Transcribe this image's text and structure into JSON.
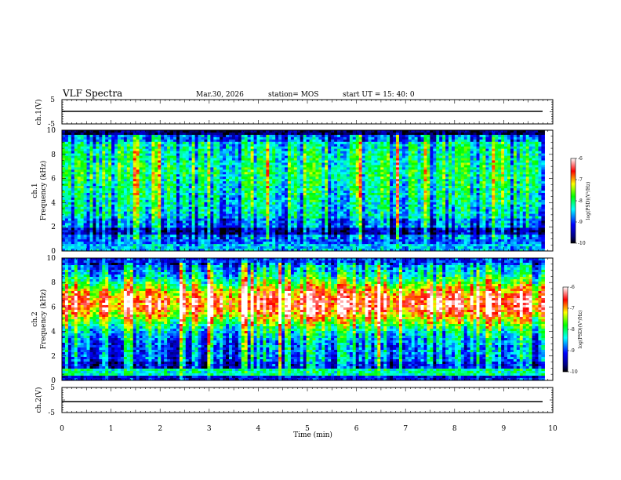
{
  "header": {
    "title": "VLF Spectra",
    "date": "Mar.30, 2026",
    "station": "station= MOS",
    "start": "start  UT  =   15: 40: 0"
  },
  "chart_data": [
    {
      "type": "line",
      "name": "ch1_waveform",
      "ylabel": "ch.1(V)",
      "ylim": [
        -5,
        5
      ],
      "ytick_labels": [
        "5",
        "-5"
      ],
      "baseline": -1.2
    },
    {
      "type": "heatmap",
      "name": "ch1_spectrogram",
      "ylabel_line1": "ch.1",
      "ylabel_line2": "Frequency (kHz)",
      "ylim": [
        0,
        10
      ],
      "yticks": [
        0,
        2,
        4,
        6,
        8,
        10
      ],
      "colorbar": {
        "label": "log(PSD)(V²/Hz)",
        "range": [
          -10,
          -6
        ],
        "ticks": [
          "-6",
          "-7",
          "-8",
          "-9",
          "-10"
        ]
      }
    },
    {
      "type": "heatmap",
      "name": "ch2_spectrogram",
      "ylabel_line1": "ch.2",
      "ylabel_line2": "Frequency (kHz)",
      "ylim": [
        0,
        10
      ],
      "yticks": [
        0,
        2,
        4,
        6,
        8,
        10
      ],
      "colorbar": {
        "label": "log(PSD)(V²/Hz)",
        "range": [
          -10,
          -6
        ],
        "ticks": [
          "-6",
          "-7",
          "-8",
          "-9",
          "-10"
        ]
      }
    },
    {
      "type": "line",
      "name": "ch2_waveform",
      "ylabel": "ch.2(V)",
      "ylim": [
        -5,
        5
      ],
      "ytick_labels": [
        "5",
        "-5"
      ],
      "baseline": -1.2
    }
  ],
  "xaxis": {
    "label": "Time  (min)",
    "xlim": [
      0,
      10
    ],
    "ticks": [
      "0",
      "1",
      "2",
      "3",
      "4",
      "5",
      "6",
      "7",
      "8",
      "9",
      "10"
    ],
    "data_end": 9.83
  }
}
